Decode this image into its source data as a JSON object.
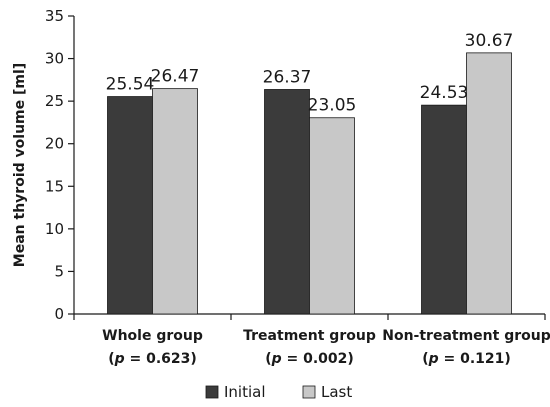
{
  "chart_data": {
    "type": "bar",
    "categories": [
      "Whole group",
      "Treatment group",
      "Non-treatment group"
    ],
    "category_stats": [
      {
        "p_symbol": "p",
        "p_text": " = 0.623"
      },
      {
        "p_symbol": "p",
        "p_text": " = 0.002"
      },
      {
        "p_symbol": "p",
        "p_text": " = 0.121"
      }
    ],
    "series": [
      {
        "name": "Initial",
        "values": [
          25.54,
          26.37,
          24.53
        ],
        "color": "#3b3b3b"
      },
      {
        "name": "Last",
        "values": [
          26.47,
          23.05,
          30.67
        ],
        "color": "#c8c8c8"
      }
    ],
    "value_labels": [
      [
        "25.54",
        "26.37",
        "24.53"
      ],
      [
        "26.47",
        "23.05",
        "30.67"
      ]
    ],
    "title": "",
    "xlabel": "",
    "ylabel": "Mean thyroid volume [ml]",
    "ylim": [
      0,
      35
    ],
    "yticks": [
      0,
      5,
      10,
      15,
      20,
      25,
      30,
      35
    ],
    "grid": false,
    "legend_position": "bottom-center"
  }
}
